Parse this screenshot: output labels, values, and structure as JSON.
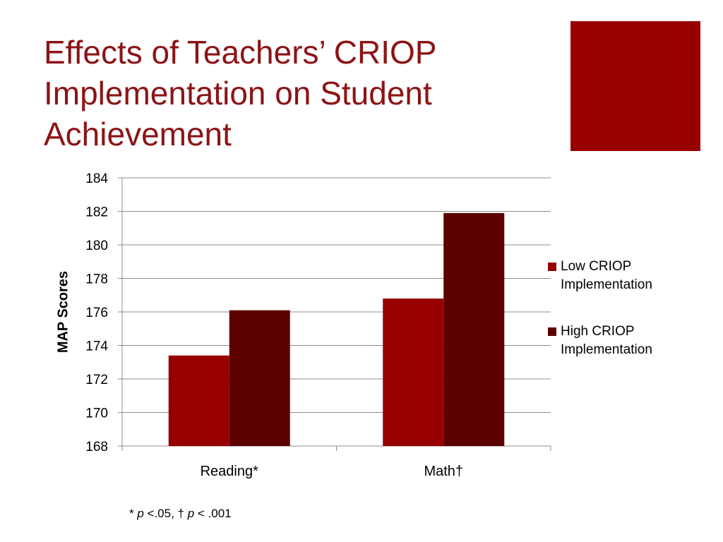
{
  "slide": {
    "title_lines": [
      "Effects of Teachers’ CRIOP",
      "Implementation on Student",
      "Achievement"
    ],
    "accent_color": "#980000",
    "footnote": {
      "part1": "* ",
      "p1": "p",
      "part2": " <.05, † ",
      "p2": "p",
      "part3": " < .001"
    }
  },
  "chart_data": {
    "type": "bar",
    "ylabel": "MAP Scores",
    "xlabel": "",
    "categories": [
      "Reading*",
      "Math†"
    ],
    "series": [
      {
        "name": "Low CRIOP\nImplementation",
        "values": [
          173.4,
          176.8
        ],
        "color": "#980000"
      },
      {
        "name": "High CRIOP\nImplementation",
        "values": [
          176.1,
          181.9
        ],
        "color": "#5c0000"
      }
    ],
    "ylim": [
      168,
      184
    ],
    "yticks": [
      "168",
      "170",
      "172",
      "174",
      "176",
      "178",
      "180",
      "182",
      "184"
    ],
    "grid": true,
    "legend_position": "right"
  }
}
